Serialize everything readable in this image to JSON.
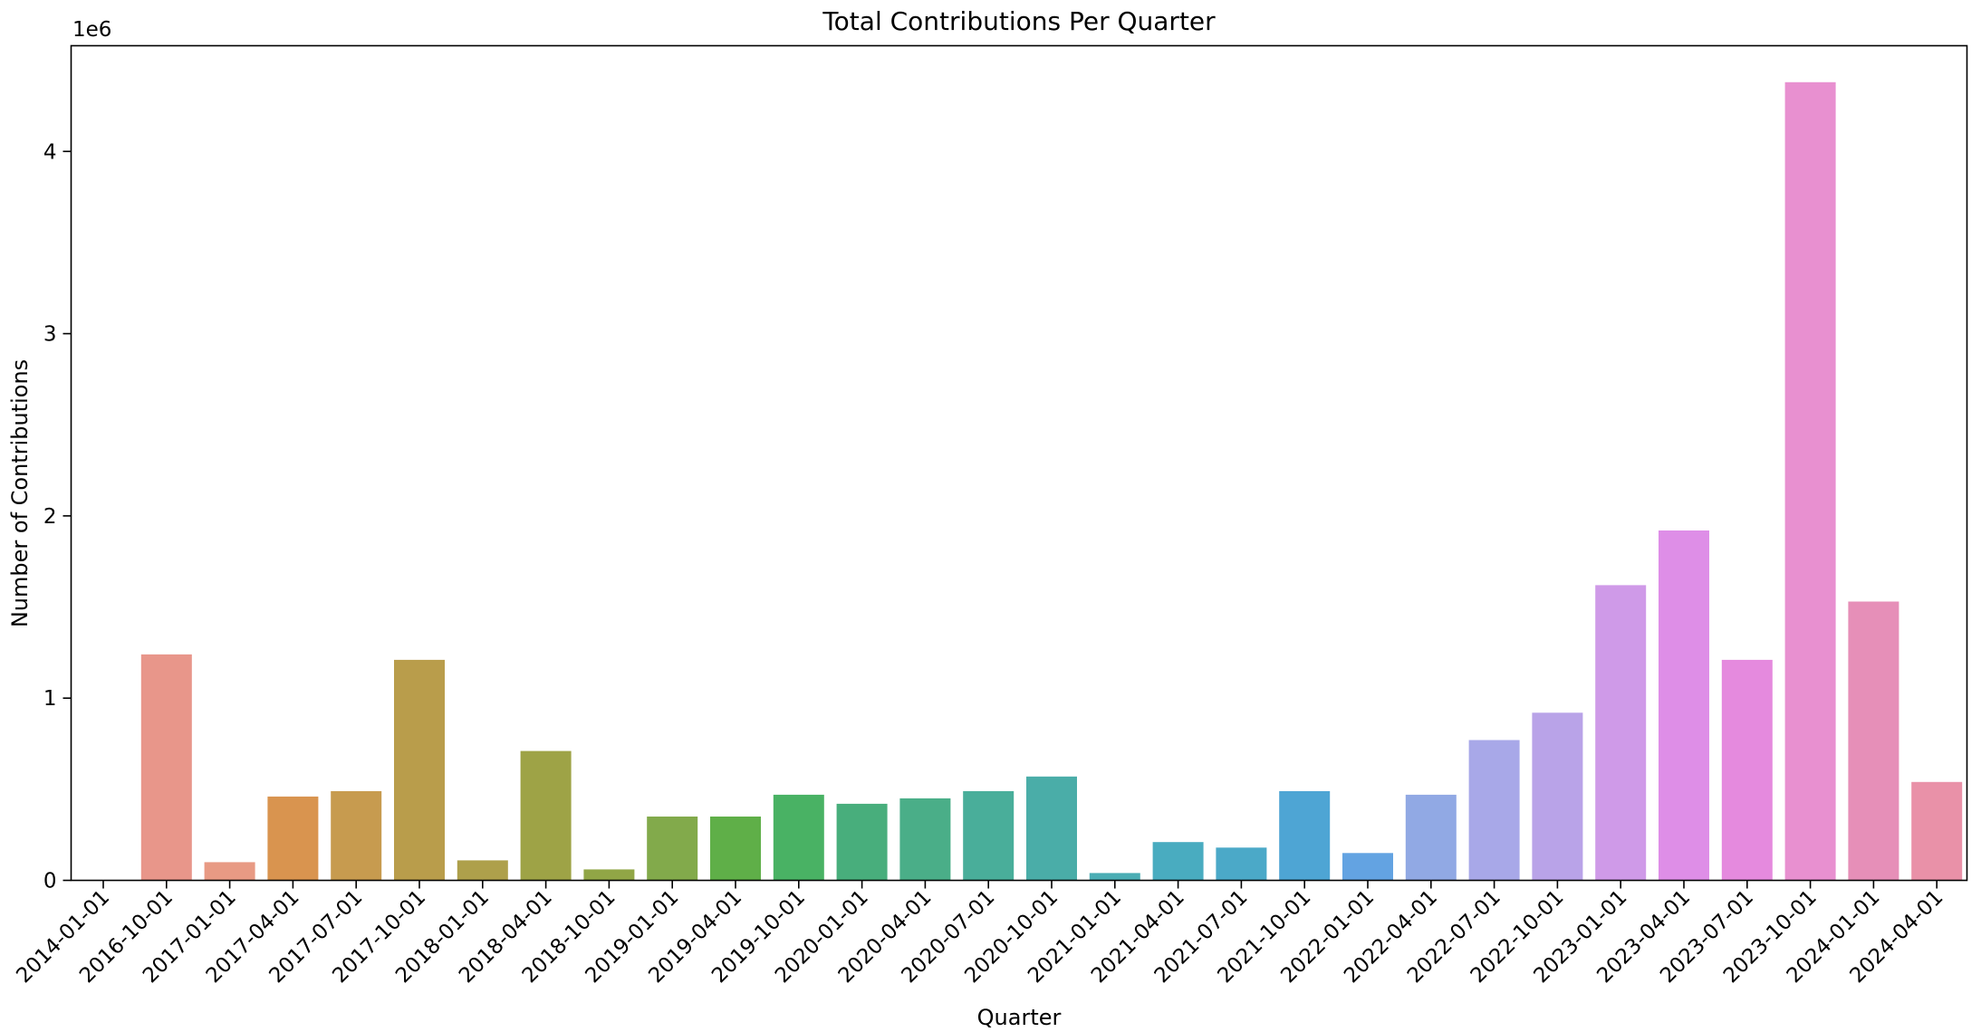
{
  "chart_data": {
    "type": "bar",
    "title": "Total Contributions Per Quarter",
    "xlabel": "Quarter",
    "ylabel": "Number of Contributions",
    "y_offset_label": "1e6",
    "ylim": [
      0,
      4.58
    ],
    "yticks": [
      0,
      1,
      2,
      3,
      4
    ],
    "grid": false,
    "categories": [
      "2014-01-01",
      "2016-10-01",
      "2017-01-01",
      "2017-04-01",
      "2017-07-01",
      "2017-10-01",
      "2018-01-01",
      "2018-04-01",
      "2018-10-01",
      "2019-01-01",
      "2019-04-01",
      "2019-10-01",
      "2020-01-01",
      "2020-04-01",
      "2020-07-01",
      "2020-10-01",
      "2021-01-01",
      "2021-04-01",
      "2021-07-01",
      "2021-10-01",
      "2022-01-01",
      "2022-04-01",
      "2022-07-01",
      "2022-10-01",
      "2023-01-01",
      "2023-04-01",
      "2023-07-01",
      "2023-10-01",
      "2024-01-01",
      "2024-04-01"
    ],
    "values": [
      0.0,
      1.24,
      0.1,
      0.46,
      0.49,
      1.21,
      0.11,
      0.71,
      0.06,
      0.35,
      0.35,
      0.47,
      0.42,
      0.45,
      0.49,
      0.57,
      0.04,
      0.21,
      0.18,
      0.49,
      0.15,
      0.47,
      0.77,
      0.92,
      1.62,
      1.92,
      1.21,
      4.38,
      1.53,
      0.54
    ],
    "colors": [
      "#ea9c92",
      "#e8968a",
      "#e89a84",
      "#d9944f",
      "#c79b4f",
      "#b99d4b",
      "#aea04b",
      "#9ea346",
      "#91a646",
      "#82aa4b",
      "#5faf48",
      "#49b264",
      "#48ae7c",
      "#4aae88",
      "#49ae9a",
      "#4aada8",
      "#4aadb4",
      "#49acc0",
      "#4ba9c8",
      "#4ea5d4",
      "#63a3e2",
      "#91a9e4",
      "#a8a8e8",
      "#b9a3e8",
      "#cf9ae8",
      "#de8ee7",
      "#e58ade",
      "#e890d0",
      "#e68fb8",
      "#e991a8"
    ]
  }
}
